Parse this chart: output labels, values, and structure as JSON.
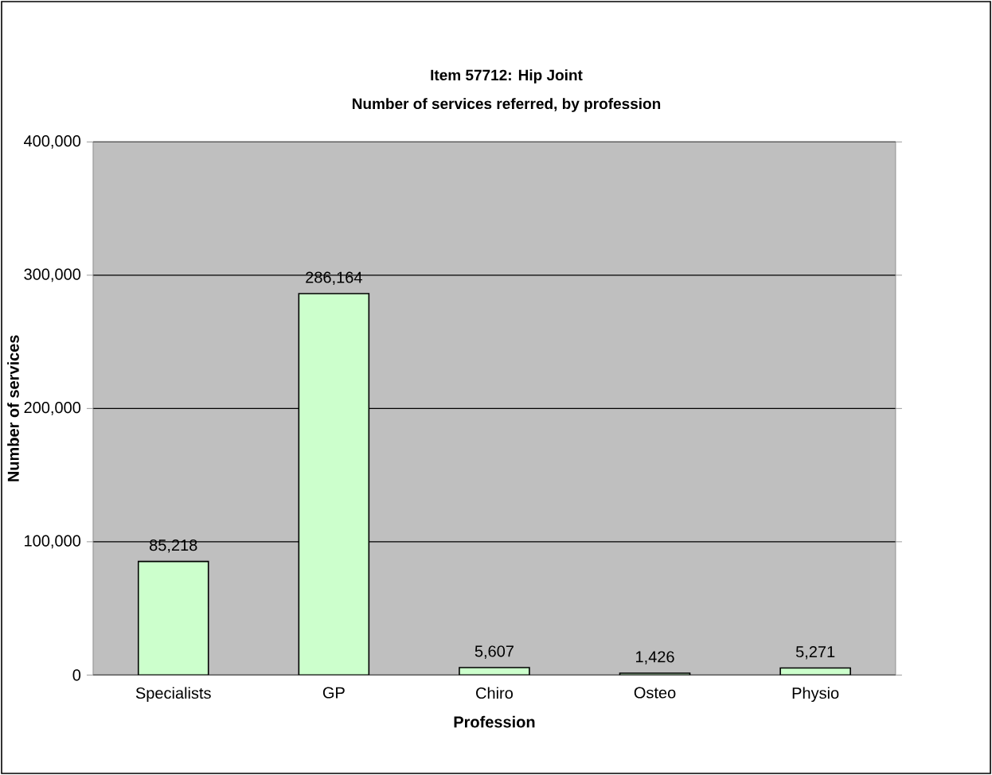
{
  "chart_data": {
    "type": "bar",
    "title": "Item 57712: Hip Joint",
    "subtitle": "Number of services referred, by profession",
    "xlabel": "Profession",
    "ylabel": "Number of services",
    "categories": [
      "Specialists",
      "GP",
      "Chiro",
      "Osteo",
      "Physio"
    ],
    "values": [
      85218,
      286164,
      5607,
      1426,
      5271
    ],
    "value_labels": [
      "85,218",
      "286,164",
      "5,607",
      "1,426",
      "5,271"
    ],
    "color": "#ccffcc",
    "ylim": [
      0,
      400000
    ],
    "yticks": [
      {
        "value": 0,
        "label": "0"
      },
      {
        "value": 100000,
        "label": "100,000"
      },
      {
        "value": 200000,
        "label": "200,000"
      },
      {
        "value": 300000,
        "label": "300,000"
      },
      {
        "value": 400000,
        "label": "400,000"
      }
    ],
    "grid": "y"
  }
}
